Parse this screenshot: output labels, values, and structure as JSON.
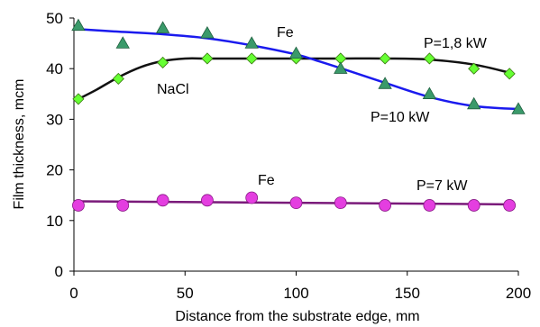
{
  "chart_data": {
    "type": "scatter",
    "title": "",
    "xlabel": "Distance from the substrate edge, mm",
    "ylabel": "Film thickness, mcm",
    "xlim": [
      0,
      200
    ],
    "ylim": [
      0,
      50
    ],
    "x_ticks": [
      0,
      50,
      100,
      150,
      200
    ],
    "y_ticks": [
      0,
      10,
      20,
      30,
      40,
      50
    ],
    "grid": false,
    "legend": "none",
    "annotations": [
      {
        "id": "fe-top",
        "text": "Fe"
      },
      {
        "id": "p18",
        "text": "P=1,8 kW"
      },
      {
        "id": "nacl",
        "text": "NaCl"
      },
      {
        "id": "p10",
        "text": "P=10 kW"
      },
      {
        "id": "fe-bottom",
        "text": "Fe"
      },
      {
        "id": "p7",
        "text": "P=7 kW"
      }
    ],
    "series": [
      {
        "marker": "diamond",
        "color": "#66ff33",
        "line_color": "#111111",
        "x": [
          2,
          20,
          40,
          60,
          80,
          100,
          120,
          140,
          160,
          180,
          196
        ],
        "y": [
          34,
          38,
          41.2,
          42,
          42,
          42,
          42,
          42,
          42,
          40,
          39
        ],
        "fit_x": [
          2,
          10,
          20,
          30,
          40,
          50,
          60,
          80,
          100,
          120,
          140,
          160,
          180,
          196
        ],
        "fit_y": [
          34,
          35.8,
          38.3,
          40.3,
          41.5,
          42,
          42,
          42,
          42,
          42,
          42,
          41.8,
          40.8,
          39.2
        ]
      },
      {
        "marker": "triangle",
        "color": "#3a9a6a",
        "line_color": "#1a1aee",
        "x": [
          2,
          22,
          40,
          60,
          80,
          100,
          120,
          140,
          160,
          180,
          200
        ],
        "y": [
          48.5,
          45,
          48,
          47,
          45,
          43,
          40,
          37,
          35,
          33,
          32
        ],
        "fit_x": [
          2,
          20,
          40,
          60,
          80,
          100,
          110,
          120,
          140,
          160,
          180,
          200
        ],
        "fit_y": [
          47.8,
          47.3,
          46.8,
          46,
          44.6,
          42.8,
          41.5,
          40.1,
          37.2,
          34.4,
          32.6,
          32
        ]
      },
      {
        "marker": "circle",
        "color": "#e43ee0",
        "line_color": "#7a1a7a",
        "x": [
          2,
          22,
          40,
          60,
          80,
          100,
          120,
          140,
          160,
          180,
          196
        ],
        "y": [
          13,
          13,
          14,
          14,
          14.5,
          13.5,
          13.5,
          13,
          13,
          13,
          13
        ],
        "fit_x": [
          2,
          196
        ],
        "fit_y": [
          13.8,
          13.2
        ]
      }
    ]
  }
}
